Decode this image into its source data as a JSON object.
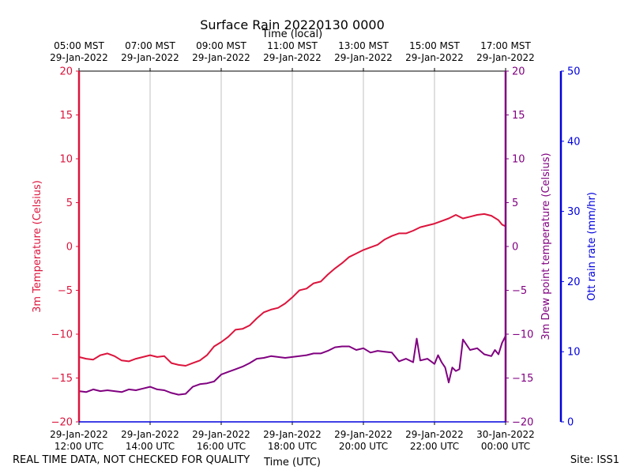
{
  "chart_data": {
    "type": "line",
    "title": "Surface Rain 20220130 0000",
    "top_axis_label": "Time (local)",
    "xlabel": "Time (UTC)",
    "x_ticks_utc": [
      {
        "hour": 12,
        "date": "29-Jan-2022",
        "time": "12:00 UTC"
      },
      {
        "hour": 14,
        "date": "29-Jan-2022",
        "time": "14:00 UTC"
      },
      {
        "hour": 16,
        "date": "29-Jan-2022",
        "time": "16:00 UTC"
      },
      {
        "hour": 18,
        "date": "29-Jan-2022",
        "time": "18:00 UTC"
      },
      {
        "hour": 20,
        "date": "29-Jan-2022",
        "time": "20:00 UTC"
      },
      {
        "hour": 22,
        "date": "29-Jan-2022",
        "time": "22:00 UTC"
      },
      {
        "hour": 24,
        "date": "30-Jan-2022",
        "time": "00:00 UTC"
      }
    ],
    "x_ticks_local": [
      {
        "hour": 12,
        "time": "05:00 MST",
        "date": "29-Jan-2022"
      },
      {
        "hour": 14,
        "time": "07:00 MST",
        "date": "29-Jan-2022"
      },
      {
        "hour": 16,
        "time": "09:00 MST",
        "date": "29-Jan-2022"
      },
      {
        "hour": 18,
        "time": "11:00 MST",
        "date": "29-Jan-2022"
      },
      {
        "hour": 20,
        "time": "13:00 MST",
        "date": "29-Jan-2022"
      },
      {
        "hour": 22,
        "time": "15:00 MST",
        "date": "29-Jan-2022"
      },
      {
        "hour": 24,
        "time": "17:00 MST",
        "date": "29-Jan-2022"
      }
    ],
    "xlim": [
      12,
      24
    ],
    "left_axis": {
      "label": "3m Temperature (Celsius)",
      "color": "#dc143c",
      "ylim": [
        -20,
        20
      ],
      "ticks": [
        -20,
        -15,
        -10,
        -5,
        0,
        5,
        10,
        15,
        20
      ],
      "tick_labels": [
        "−20",
        "−15",
        "−10",
        "−5",
        "0",
        "5",
        "10",
        "15",
        "20"
      ]
    },
    "right_axis_1": {
      "label": "3m Dew point temperature (Celsius)",
      "color": "#800080",
      "ylim": [
        -20,
        20
      ],
      "ticks": [
        -20,
        -15,
        -10,
        -5,
        0,
        5,
        10,
        15,
        20
      ],
      "tick_labels": [
        "−20",
        "−15",
        "−10",
        "−5",
        "0",
        "5",
        "10",
        "15",
        "20"
      ]
    },
    "right_axis_2": {
      "label": "Ott rain rate (mm/hr)",
      "color": "#0000dd",
      "ylim": [
        0,
        50
      ],
      "ticks": [
        0,
        10,
        20,
        30,
        40,
        50
      ],
      "tick_labels": [
        "0",
        "10",
        "20",
        "30",
        "40",
        "50"
      ]
    },
    "series": [
      {
        "name": "3m Temperature",
        "color": "#dc143c",
        "axis": "left",
        "x": [
          12.0,
          12.2,
          12.4,
          12.6,
          12.8,
          13.0,
          13.2,
          13.4,
          13.6,
          13.8,
          14.0,
          14.2,
          14.4,
          14.6,
          14.8,
          15.0,
          15.2,
          15.4,
          15.6,
          15.8,
          16.0,
          16.2,
          16.4,
          16.6,
          16.8,
          17.0,
          17.2,
          17.4,
          17.6,
          17.8,
          18.0,
          18.2,
          18.4,
          18.6,
          18.8,
          19.0,
          19.2,
          19.4,
          19.6,
          19.8,
          20.0,
          20.2,
          20.4,
          20.6,
          20.8,
          21.0,
          21.2,
          21.4,
          21.6,
          21.8,
          22.0,
          22.2,
          22.4,
          22.6,
          22.8,
          23.0,
          23.2,
          23.4,
          23.6,
          23.8,
          23.9,
          24.0
        ],
        "values": [
          -12.6,
          -12.8,
          -12.9,
          -12.4,
          -12.2,
          -12.5,
          -13.0,
          -13.1,
          -12.8,
          -12.6,
          -12.4,
          -12.6,
          -12.5,
          -13.3,
          -13.5,
          -13.6,
          -13.3,
          -13.0,
          -12.4,
          -11.4,
          -10.9,
          -10.3,
          -9.5,
          -9.4,
          -9.0,
          -8.2,
          -7.5,
          -7.2,
          -7.0,
          -6.5,
          -5.8,
          -5.0,
          -4.8,
          -4.2,
          -4.0,
          -3.2,
          -2.5,
          -1.9,
          -1.2,
          -0.8,
          -0.4,
          -0.1,
          0.2,
          0.8,
          1.2,
          1.5,
          1.5,
          1.8,
          2.2,
          2.4,
          2.6,
          2.9,
          3.2,
          3.6,
          3.2,
          3.4,
          3.6,
          3.7,
          3.5,
          3.0,
          2.5,
          2.3
        ]
      },
      {
        "name": "3m Dew point temperature",
        "color": "#800080",
        "axis": "right_1",
        "x": [
          12.0,
          12.2,
          12.4,
          12.6,
          12.8,
          13.0,
          13.2,
          13.4,
          13.6,
          13.8,
          14.0,
          14.2,
          14.4,
          14.6,
          14.8,
          15.0,
          15.2,
          15.4,
          15.6,
          15.8,
          16.0,
          16.2,
          16.4,
          16.6,
          16.8,
          17.0,
          17.2,
          17.4,
          17.6,
          17.8,
          18.0,
          18.2,
          18.4,
          18.6,
          18.8,
          19.0,
          19.2,
          19.4,
          19.6,
          19.8,
          20.0,
          20.2,
          20.4,
          20.6,
          20.8,
          21.0,
          21.2,
          21.4,
          21.5,
          21.6,
          21.8,
          22.0,
          22.1,
          22.2,
          22.3,
          22.4,
          22.5,
          22.6,
          22.7,
          22.8,
          23.0,
          23.2,
          23.4,
          23.6,
          23.7,
          23.8,
          23.9,
          24.0
        ],
        "values": [
          -16.5,
          -16.6,
          -16.3,
          -16.5,
          -16.4,
          -16.5,
          -16.6,
          -16.3,
          -16.4,
          -16.2,
          -16.0,
          -16.3,
          -16.4,
          -16.7,
          -16.9,
          -16.8,
          -16.0,
          -15.7,
          -15.6,
          -15.4,
          -14.6,
          -14.3,
          -14.0,
          -13.7,
          -13.3,
          -12.8,
          -12.7,
          -12.5,
          -12.6,
          -12.7,
          -12.6,
          -12.5,
          -12.4,
          -12.2,
          -12.2,
          -11.9,
          -11.5,
          -11.4,
          -11.4,
          -11.8,
          -11.6,
          -12.1,
          -11.9,
          -12.0,
          -12.1,
          -13.1,
          -12.8,
          -13.2,
          -10.5,
          -13.0,
          -12.8,
          -13.4,
          -12.4,
          -13.2,
          -13.8,
          -15.5,
          -13.8,
          -14.2,
          -14.0,
          -10.6,
          -11.8,
          -11.6,
          -12.3,
          -12.5,
          -11.8,
          -12.3,
          -11.0,
          -10.2
        ]
      }
    ]
  },
  "footer": {
    "left_text": "REAL TIME DATA, NOT CHECKED FOR QUALITY",
    "right_text": "Site: ISS1"
  }
}
